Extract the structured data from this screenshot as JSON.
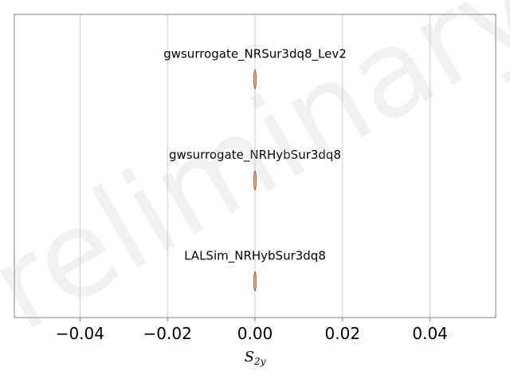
{
  "watermark": "Preliminary",
  "chart_data": {
    "type": "violin",
    "title": "",
    "xlabel": "S",
    "xlabel_subscript": "2y",
    "ylabel": "",
    "xlim": [
      -0.055,
      0.055
    ],
    "xticks": [
      -0.04,
      -0.02,
      0.0,
      0.02,
      0.04
    ],
    "xtick_labels": [
      "−0.04",
      "−0.02",
      "0.00",
      "0.02",
      "0.04"
    ],
    "grid": "vertical",
    "series": [
      {
        "name": "gwsurrogate_NRSur3dq8_Lev2",
        "center": 0.0,
        "min": 0.0,
        "max": 0.0
      },
      {
        "name": "gwsurrogate_NRHybSur3dq8",
        "center": 0.0,
        "min": 0.0,
        "max": 0.0
      },
      {
        "name": "LALSim_NRHybSur3dq8",
        "center": 0.0,
        "min": 0.0,
        "max": 0.0
      }
    ],
    "colors": {
      "violin_fill": "#d9a88a",
      "violin_edge": "#8c5a3c",
      "grid": "#cccccc",
      "frame": "#808080"
    }
  }
}
